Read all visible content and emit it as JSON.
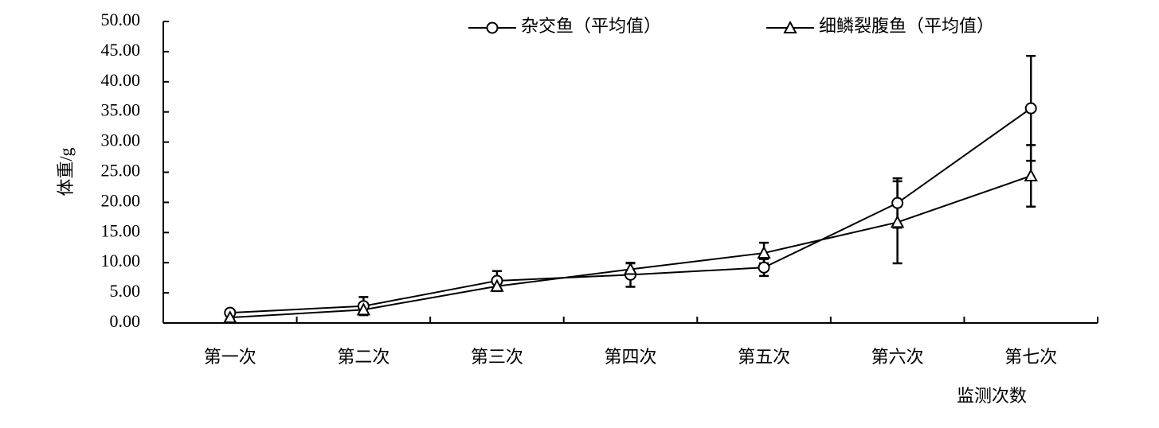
{
  "chart_data": {
    "type": "line",
    "ylabel": "体重/g",
    "xlabel": "监测次数",
    "categories": [
      "第一次",
      "第二次",
      "第三次",
      "第四次",
      "第五次",
      "第六次",
      "第七次"
    ],
    "series": [
      {
        "name": "杂交鱼（平均值）",
        "color": "#000000",
        "marker": "circle",
        "values": [
          1.7,
          2.8,
          7.0,
          8.0,
          9.2,
          19.9,
          35.6
        ],
        "errors": [
          0.3,
          1.5,
          1.6,
          2.0,
          1.4,
          4.1,
          8.7
        ]
      },
      {
        "name": "细鳞裂腹鱼（平均值）",
        "color": "#000000",
        "marker": "triangle",
        "values": [
          0.9,
          2.2,
          6.1,
          8.9,
          11.6,
          16.7,
          24.4
        ],
        "errors": [
          0.3,
          0.4,
          0.8,
          1.0,
          1.7,
          6.8,
          5.1
        ]
      }
    ],
    "ylim": [
      0,
      50
    ],
    "yticks": [
      {
        "value": 0,
        "label": "0.00"
      },
      {
        "value": 5,
        "label": "5.00"
      },
      {
        "value": 10,
        "label": "10.00"
      },
      {
        "value": 15,
        "label": "15.00"
      },
      {
        "value": 20,
        "label": "20.00"
      },
      {
        "value": 25,
        "label": "25.00"
      },
      {
        "value": 30,
        "label": "30.00"
      },
      {
        "value": 35,
        "label": "35.00"
      },
      {
        "value": 40,
        "label": "40.00"
      },
      {
        "value": 45,
        "label": "45.00"
      },
      {
        "value": 50,
        "label": "50.00"
      }
    ],
    "legend": "top"
  }
}
